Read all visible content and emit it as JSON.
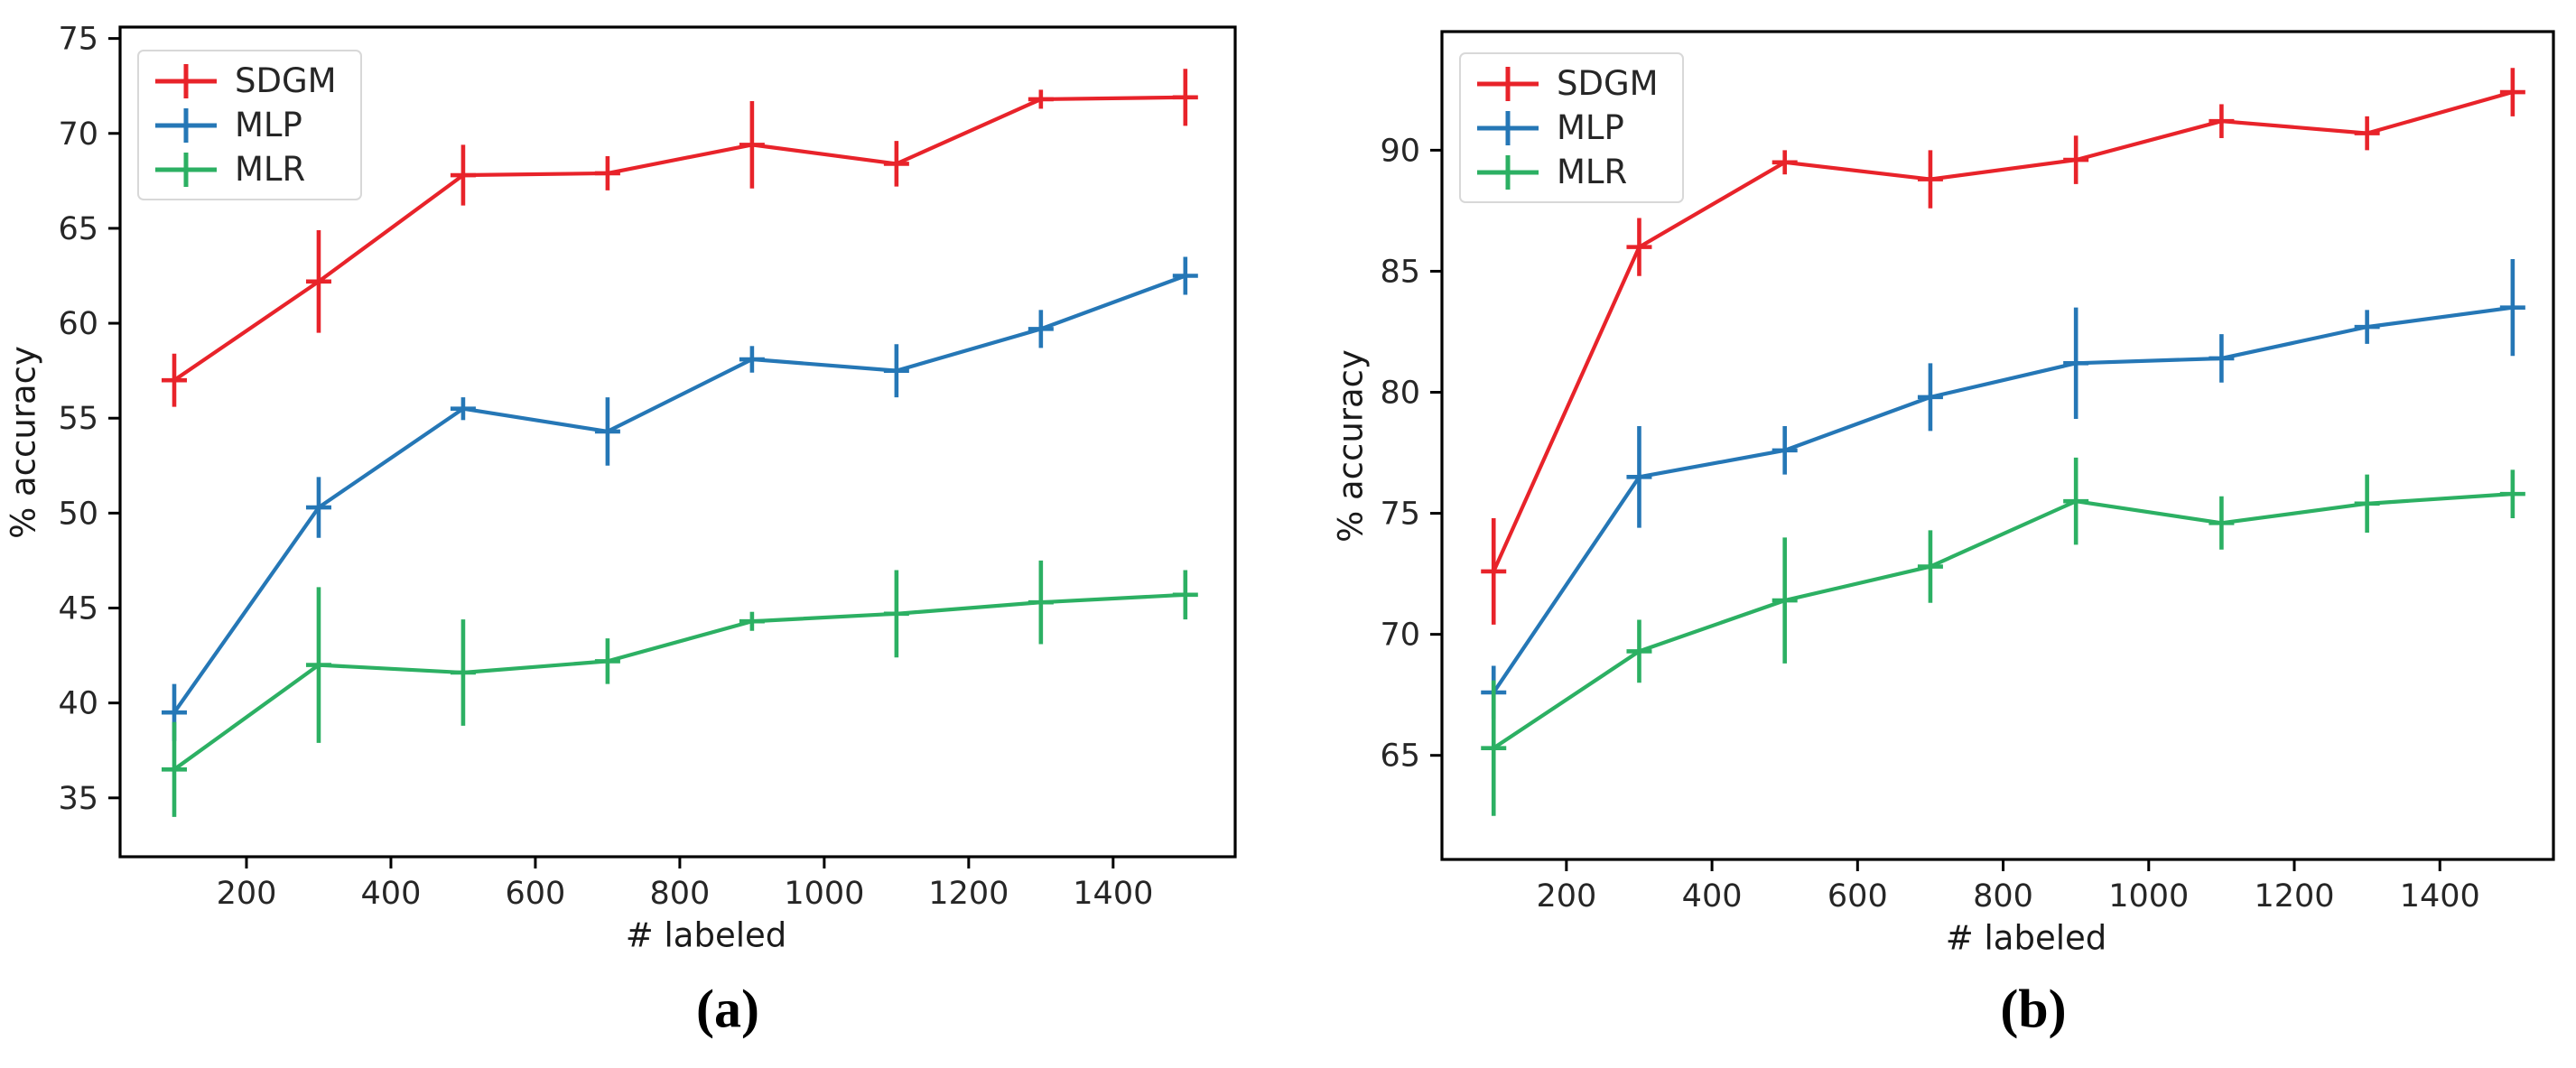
{
  "figure": {
    "background_color": "#ffffff"
  },
  "chart_data": [
    {
      "type": "line",
      "caption": "(a)",
      "xlabel": "# labeled",
      "ylabel": "% accuracy",
      "x": [
        100,
        300,
        500,
        700,
        900,
        1100,
        1300,
        1500
      ],
      "xticks": [
        200,
        400,
        600,
        800,
        1000,
        1200,
        1400
      ],
      "yticks": [
        35,
        40,
        45,
        50,
        55,
        60,
        65,
        70,
        75
      ],
      "xlim": [
        25,
        1569
      ],
      "ylim": [
        31.9,
        75.6
      ],
      "grid": false,
      "legend_position": "upper-left",
      "error_bars": true,
      "series": [
        {
          "name": "SDGM",
          "color": "#e8232a",
          "values": [
            57.0,
            62.2,
            67.8,
            67.9,
            69.4,
            68.4,
            71.8,
            71.9
          ],
          "errors": [
            1.4,
            2.7,
            1.6,
            0.9,
            2.3,
            1.2,
            0.5,
            1.5
          ]
        },
        {
          "name": "MLP",
          "color": "#2577b6",
          "values": [
            39.5,
            50.3,
            55.5,
            54.3,
            58.1,
            57.5,
            59.7,
            62.5
          ],
          "errors": [
            1.5,
            1.6,
            0.6,
            1.8,
            0.7,
            1.4,
            1.0,
            1.0
          ]
        },
        {
          "name": "MLR",
          "color": "#2cb063",
          "values": [
            36.5,
            42.0,
            41.6,
            42.2,
            44.3,
            44.7,
            45.3,
            45.7
          ],
          "errors": [
            2.5,
            4.1,
            2.8,
            1.2,
            0.5,
            2.3,
            2.2,
            1.3
          ]
        }
      ]
    },
    {
      "type": "line",
      "caption": "(b)",
      "xlabel": "# labeled",
      "ylabel": "% accuracy",
      "x": [
        100,
        300,
        500,
        700,
        900,
        1100,
        1300,
        1500
      ],
      "xticks": [
        200,
        400,
        600,
        800,
        1000,
        1200,
        1400
      ],
      "yticks": [
        65,
        70,
        75,
        80,
        85,
        90
      ],
      "xlim": [
        29,
        1556
      ],
      "ylim": [
        60.7,
        94.9
      ],
      "grid": false,
      "legend_position": "upper-left",
      "error_bars": true,
      "series": [
        {
          "name": "SDGM",
          "color": "#e8232a",
          "values": [
            72.6,
            86.0,
            89.5,
            88.8,
            89.6,
            91.2,
            90.7,
            92.4
          ],
          "errors": [
            2.2,
            1.2,
            0.5,
            1.2,
            1.0,
            0.7,
            0.7,
            1.0
          ]
        },
        {
          "name": "MLP",
          "color": "#2577b6",
          "values": [
            67.6,
            76.5,
            77.6,
            79.8,
            81.2,
            81.4,
            82.7,
            83.5
          ],
          "errors": [
            1.1,
            2.1,
            1.0,
            1.4,
            2.3,
            1.0,
            0.7,
            2.0
          ]
        },
        {
          "name": "MLR",
          "color": "#2cb063",
          "values": [
            65.3,
            69.3,
            71.4,
            72.8,
            75.5,
            74.6,
            75.4,
            75.8
          ],
          "errors": [
            2.8,
            1.3,
            2.6,
            1.5,
            1.8,
            1.1,
            1.2,
            1.0
          ]
        }
      ]
    }
  ]
}
